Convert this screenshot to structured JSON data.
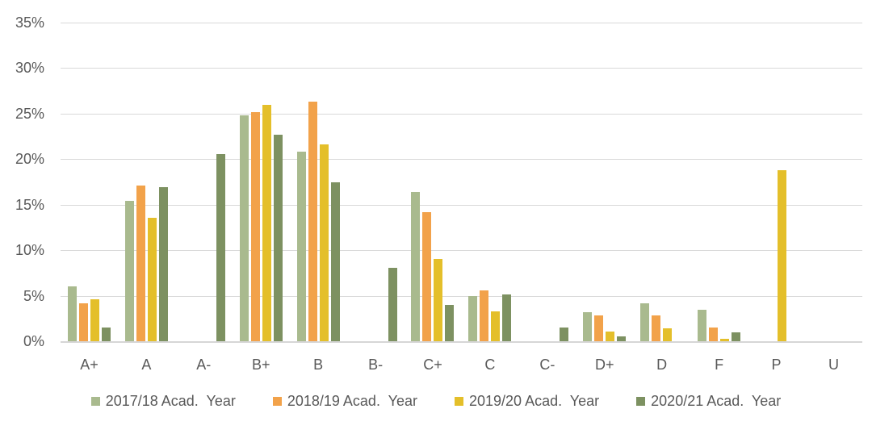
{
  "chart": {
    "background_color": "#ffffff",
    "text_color": "#595959",
    "gridline_color": "#d9d9d9"
  },
  "chart_data": {
    "type": "bar",
    "title": "",
    "xlabel": "",
    "ylabel": "",
    "categories": [
      "A+",
      "A",
      "A-",
      "B+",
      "B",
      "B-",
      "C+",
      "C",
      "C-",
      "D+",
      "D",
      "F",
      "P",
      "U"
    ],
    "series": [
      {
        "name": "2017/18 Acad.  Year",
        "color": "#a9ba8e",
        "values": [
          6.0,
          15.4,
          0,
          24.8,
          20.8,
          0,
          16.4,
          5.0,
          0,
          3.2,
          4.2,
          3.5,
          0,
          0
        ]
      },
      {
        "name": "2018/19 Acad.  Year",
        "color": "#f2a24a",
        "values": [
          4.2,
          17.1,
          0,
          25.2,
          26.3,
          0,
          14.2,
          5.6,
          0,
          2.8,
          2.8,
          1.5,
          0,
          0
        ]
      },
      {
        "name": "2019/20 Acad.  Year",
        "color": "#e4bf2a",
        "values": [
          4.6,
          13.6,
          0,
          26.0,
          21.6,
          0,
          9.0,
          3.3,
          0,
          1.1,
          1.4,
          0.3,
          18.8,
          0
        ]
      },
      {
        "name": "2020/21 Acad.  Year",
        "color": "#7d9161",
        "values": [
          1.5,
          16.9,
          20.6,
          22.7,
          17.5,
          8.1,
          4.0,
          5.1,
          1.5,
          0.5,
          0,
          1.0,
          0,
          0
        ]
      }
    ],
    "ylim": [
      0,
      35
    ],
    "ytick_step": 5,
    "ytick_labels": [
      "0%",
      "5%",
      "10%",
      "15%",
      "20%",
      "25%",
      "30%",
      "35%"
    ],
    "grid": true,
    "legend_position": "bottom"
  }
}
